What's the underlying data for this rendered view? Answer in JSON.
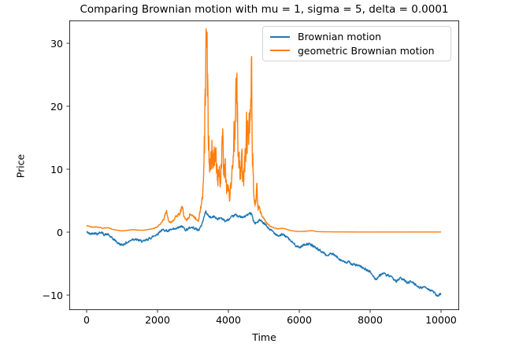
{
  "title": "Comparing Brownian motion with mu = 1, sigma = 5, delta = 0.0001",
  "axes": {
    "xlabel": "Time",
    "ylabel": "Price"
  },
  "legend": {
    "entries": [
      {
        "label": "Brownian motion",
        "color": "#1f77b4"
      },
      {
        "label": "geometric Brownian motion",
        "color": "#ff7f0e"
      }
    ]
  },
  "chart_data": {
    "type": "line",
    "title": "Comparing Brownian motion with mu = 1, sigma = 5, delta = 0.0001",
    "xlabel": "Time",
    "ylabel": "Price",
    "xlim": [
      -500,
      10500
    ],
    "ylim": [
      -12.4,
      33.6
    ],
    "x_ticks": [
      0,
      2000,
      4000,
      6000,
      8000,
      10000
    ],
    "y_ticks": [
      -10,
      0,
      10,
      20,
      30
    ],
    "grid": false,
    "legend_position": "upper center-right",
    "series": [
      {
        "name": "Brownian motion",
        "color": "#1f77b4",
        "anchors": [
          [
            0,
            0.05
          ],
          [
            100,
            -0.3
          ],
          [
            200,
            -0.1
          ],
          [
            300,
            -0.25
          ],
          [
            400,
            0.0
          ],
          [
            500,
            -0.4
          ],
          [
            600,
            -0.35
          ],
          [
            700,
            -0.9
          ],
          [
            800,
            -1.3
          ],
          [
            900,
            -1.8
          ],
          [
            1000,
            -2.05
          ],
          [
            1100,
            -1.75
          ],
          [
            1200,
            -1.5
          ],
          [
            1300,
            -1.05
          ],
          [
            1400,
            -1.2
          ],
          [
            1500,
            -1.35
          ],
          [
            1600,
            -1.5
          ],
          [
            1700,
            -1.2
          ],
          [
            1800,
            -0.95
          ],
          [
            1900,
            -0.6
          ],
          [
            2000,
            -0.3
          ],
          [
            2100,
            0.3
          ],
          [
            2200,
            0.35
          ],
          [
            2300,
            0.15
          ],
          [
            2400,
            0.4
          ],
          [
            2500,
            0.45
          ],
          [
            2600,
            0.75
          ],
          [
            2700,
            0.9
          ],
          [
            2800,
            0.35
          ],
          [
            2900,
            0.65
          ],
          [
            2950,
            0.8
          ],
          [
            3050,
            0.65
          ],
          [
            3150,
            0.3
          ],
          [
            3220,
            0.8
          ],
          [
            3270,
            1.6
          ],
          [
            3310,
            2.4
          ],
          [
            3360,
            3.3
          ],
          [
            3410,
            2.8
          ],
          [
            3460,
            2.5
          ],
          [
            3520,
            2.3
          ],
          [
            3600,
            2.5
          ],
          [
            3700,
            2.1
          ],
          [
            3800,
            2.3
          ],
          [
            3900,
            1.75
          ],
          [
            4000,
            1.95
          ],
          [
            4100,
            2.4
          ],
          [
            4200,
            2.75
          ],
          [
            4300,
            2.5
          ],
          [
            4400,
            2.3
          ],
          [
            4500,
            2.6
          ],
          [
            4600,
            2.95
          ],
          [
            4660,
            3.05
          ],
          [
            4700,
            1.9
          ],
          [
            4760,
            1.35
          ],
          [
            4880,
            1.9
          ],
          [
            4960,
            1.55
          ],
          [
            5050,
            1.15
          ],
          [
            5150,
            0.5
          ],
          [
            5250,
            0.1
          ],
          [
            5350,
            -0.3
          ],
          [
            5420,
            -0.6
          ],
          [
            5500,
            -0.4
          ],
          [
            5590,
            -0.5
          ],
          [
            5700,
            -1.05
          ],
          [
            5800,
            -1.6
          ],
          [
            5900,
            -2.1
          ],
          [
            6000,
            -2.45
          ],
          [
            6100,
            -2.1
          ],
          [
            6200,
            -1.85
          ],
          [
            6300,
            -1.95
          ],
          [
            6400,
            -2.2
          ],
          [
            6500,
            -2.6
          ],
          [
            6600,
            -3.0
          ],
          [
            6700,
            -3.3
          ],
          [
            6780,
            -3.75
          ],
          [
            6900,
            -3.4
          ],
          [
            7000,
            -3.7
          ],
          [
            7100,
            -4.1
          ],
          [
            7200,
            -4.5
          ],
          [
            7300,
            -4.85
          ],
          [
            7400,
            -4.75
          ],
          [
            7500,
            -5.1
          ],
          [
            7600,
            -5.2
          ],
          [
            7700,
            -5.4
          ],
          [
            7800,
            -5.7
          ],
          [
            7900,
            -6.0
          ],
          [
            8000,
            -6.3
          ],
          [
            8100,
            -7.1
          ],
          [
            8160,
            -7.5
          ],
          [
            8250,
            -7.0
          ],
          [
            8350,
            -6.5
          ],
          [
            8450,
            -6.8
          ],
          [
            8550,
            -7.0
          ],
          [
            8650,
            -7.4
          ],
          [
            8750,
            -7.8
          ],
          [
            8850,
            -7.3
          ],
          [
            8950,
            -7.6
          ],
          [
            9050,
            -8.0
          ],
          [
            9150,
            -7.8
          ],
          [
            9250,
            -8.2
          ],
          [
            9350,
            -8.6
          ],
          [
            9450,
            -8.9
          ],
          [
            9550,
            -8.6
          ],
          [
            9650,
            -9.1
          ],
          [
            9750,
            -9.3
          ],
          [
            9850,
            -9.9
          ],
          [
            9920,
            -10.2
          ],
          [
            9960,
            -9.9
          ],
          [
            10000,
            -9.8
          ]
        ]
      },
      {
        "name": "geometric Brownian motion",
        "color": "#ff7f0e",
        "anchors": [
          [
            0,
            1.05
          ],
          [
            150,
            0.8
          ],
          [
            300,
            0.85
          ],
          [
            450,
            0.65
          ],
          [
            600,
            0.7
          ],
          [
            750,
            0.42
          ],
          [
            900,
            0.27
          ],
          [
            1000,
            0.2
          ],
          [
            1150,
            0.3
          ],
          [
            1300,
            0.4
          ],
          [
            1450,
            0.33
          ],
          [
            1600,
            0.3
          ],
          [
            1750,
            0.42
          ],
          [
            1900,
            0.6
          ],
          [
            2000,
            0.85
          ],
          [
            2100,
            1.5
          ],
          [
            2180,
            2.1
          ],
          [
            2250,
            3.4
          ],
          [
            2310,
            1.8
          ],
          [
            2370,
            1.5
          ],
          [
            2460,
            2.0
          ],
          [
            2550,
            2.6
          ],
          [
            2630,
            3.1
          ],
          [
            2700,
            4.0
          ],
          [
            2760,
            2.3
          ],
          [
            2820,
            1.9
          ],
          [
            2900,
            2.6
          ],
          [
            2950,
            2.9
          ],
          [
            3050,
            2.3
          ],
          [
            3150,
            1.7
          ],
          [
            3220,
            3.8
          ],
          [
            3270,
            5.5
          ],
          [
            3310,
            9.0
          ],
          [
            3340,
            18.0
          ],
          [
            3365,
            31.5
          ],
          [
            3382,
            21.0
          ],
          [
            3402,
            25.5
          ],
          [
            3430,
            17.0
          ],
          [
            3460,
            13.5
          ],
          [
            3500,
            11.5
          ],
          [
            3540,
            14.5
          ],
          [
            3580,
            11.5
          ],
          [
            3620,
            13.0
          ],
          [
            3660,
            9.5
          ],
          [
            3700,
            8.0
          ],
          [
            3740,
            10.5
          ],
          [
            3780,
            8.5
          ],
          [
            3830,
            13.5
          ],
          [
            3870,
            9.5
          ],
          [
            3910,
            12.0
          ],
          [
            3950,
            6.5
          ],
          [
            4000,
            7.5
          ],
          [
            4040,
            5.0
          ],
          [
            4090,
            9.0
          ],
          [
            4140,
            12.0
          ],
          [
            4190,
            16.5
          ],
          [
            4240,
            21.0
          ],
          [
            4280,
            13.0
          ],
          [
            4330,
            9.0
          ],
          [
            4380,
            10.5
          ],
          [
            4430,
            8.0
          ],
          [
            4480,
            12.5
          ],
          [
            4530,
            15.5
          ],
          [
            4580,
            19.5
          ],
          [
            4650,
            24.7
          ],
          [
            4675,
            15.0
          ],
          [
            4695,
            9.5
          ],
          [
            4715,
            6.0
          ],
          [
            4745,
            4.3
          ],
          [
            4775,
            5.2
          ],
          [
            4805,
            6.8
          ],
          [
            4835,
            3.6
          ],
          [
            4865,
            4.2
          ],
          [
            4895,
            3.0
          ],
          [
            4925,
            3.4
          ],
          [
            4955,
            2.6
          ],
          [
            5000,
            2.2
          ],
          [
            5060,
            1.7
          ],
          [
            5120,
            1.25
          ],
          [
            5200,
            0.85
          ],
          [
            5300,
            0.65
          ],
          [
            5400,
            0.5
          ],
          [
            5500,
            0.62
          ],
          [
            5600,
            0.55
          ],
          [
            5700,
            0.35
          ],
          [
            5800,
            0.22
          ],
          [
            5900,
            0.14
          ],
          [
            6000,
            0.1
          ],
          [
            6100,
            0.13
          ],
          [
            6200,
            0.16
          ],
          [
            6300,
            0.22
          ],
          [
            6370,
            0.25
          ],
          [
            6450,
            0.12
          ],
          [
            6550,
            0.08
          ],
          [
            6700,
            0.06
          ],
          [
            7000,
            0.04
          ],
          [
            7500,
            0.03
          ],
          [
            8000,
            0.03
          ],
          [
            9000,
            0.03
          ],
          [
            10000,
            0.03
          ]
        ]
      }
    ]
  }
}
